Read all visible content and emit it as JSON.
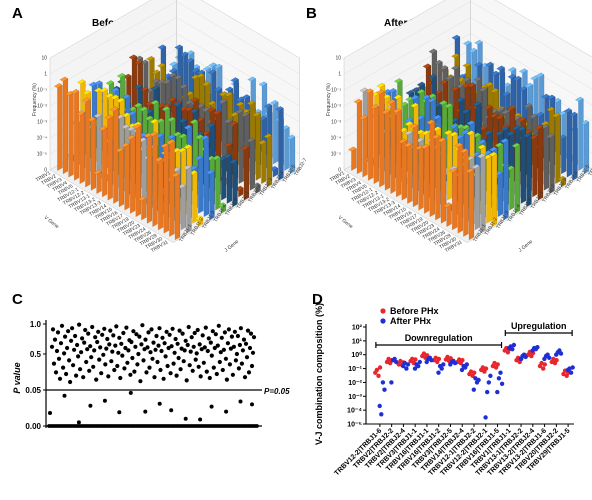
{
  "chart_data": [
    {
      "panel": "A",
      "type": "bar",
      "title": "Before PHx",
      "xlabel": "V Gene",
      "ylabel": "Frequency (%)",
      "zlabel": "J Gene",
      "z_ticks": [
        "10",
        "1",
        "10⁻¹",
        "10⁻²",
        "10⁻³",
        "10⁻⁴",
        "10⁻⁵",
        "0"
      ],
      "v_genes": [
        "TRBV1",
        "TRBV2",
        "TRBV3",
        "TRBV4",
        "TRBV5",
        "TRBV12-1",
        "TRBV12-2",
        "TRBV13-1",
        "TRBV13-2",
        "TRBV13-3",
        "TRBV14",
        "TRBV15",
        "TRBV16",
        "TRBV17",
        "TRBV19",
        "TRBV20",
        "TRBV23",
        "TRBV24",
        "TRBV26",
        "TRBV29",
        "TRBV30",
        "TRBV31"
      ],
      "j_genes": [
        "TRBJ1-1",
        "TRBJ1-2",
        "TRBJ1-3",
        "TRBJ1-4",
        "TRBJ1-5",
        "TRBJ2-1",
        "TRBJ2-2",
        "TRBJ2-3",
        "TRBJ2-4",
        "TRBJ2-5",
        "TRBJ2-7"
      ],
      "series_colors": [
        "#E87722",
        "#9E9E9E",
        "#F2B705",
        "#3A78C9",
        "#58A83A",
        "#1F4E79",
        "#8B3A0F",
        "#5F5F5F",
        "#9C7A00",
        "#2E63A8",
        "#5B9BD5"
      ]
    },
    {
      "panel": "B",
      "type": "bar",
      "title": "After PHx",
      "xlabel": "V Gene",
      "ylabel": "Frequency (%)",
      "zlabel": "J Gene",
      "z_ticks": [
        "10",
        "1",
        "10⁻¹",
        "10⁻²",
        "10⁻³",
        "10⁻⁴",
        "10⁻⁵",
        "0"
      ],
      "v_genes": [
        "TRBV1",
        "TRBV2",
        "TRBV3",
        "TRBV4",
        "TRBV5",
        "TRBV12-1",
        "TRBV12-2",
        "TRBV13-1",
        "TRBV13-2",
        "TRBV13-3",
        "TRBV14",
        "TRBV15",
        "TRBV16",
        "TRBV17",
        "TRBV19",
        "TRBV20",
        "TRBV23",
        "TRBV24",
        "TRBV26",
        "TRBV29",
        "TRBV30",
        "TRBV31"
      ],
      "j_genes": [
        "TRBJ1-1",
        "TRBJ1-2",
        "TRBJ1-3",
        "TRBJ1-4",
        "TRBJ1-5",
        "TRBJ2-1",
        "TRBJ2-2",
        "TRBJ2-3",
        "TRBJ2-4",
        "TRBJ2-5",
        "TRBJ2-7"
      ],
      "series_colors": [
        "#E87722",
        "#9E9E9E",
        "#F2B705",
        "#3A78C9",
        "#58A83A",
        "#1F4E79",
        "#8B3A0F",
        "#5F5F5F",
        "#9C7A00",
        "#2E63A8",
        "#5B9BD5"
      ]
    },
    {
      "panel": "C",
      "type": "scatter",
      "ylabel": "P value",
      "y_ticks": [
        "1.0",
        "0.5",
        "0.05",
        "0.00"
      ],
      "threshold": 0.05,
      "threshold_label": "P=0.05",
      "segment_breaks": [
        0.05,
        0.5
      ],
      "grid": false,
      "values": [
        0.62,
        0.91,
        0.38,
        0.74,
        0.27,
        0.55,
        0.86,
        0.44,
        0.19,
        0.68,
        0.97,
        0.33,
        0.51,
        0.79,
        0.25,
        0.6,
        0.88,
        0.42,
        0.15,
        0.72,
        0.93,
        0.36,
        0.57,
        0.8,
        0.23,
        0.65,
        0.47,
        0.99,
        0.31,
        0.53,
        0.76,
        0.21,
        0.69,
        0.9,
        0.4,
        0.58,
        0.84,
        0.29,
        0.63,
        0.46,
        0.95,
        0.34,
        0.56,
        0.78,
        0.18,
        0.7,
        0.87,
        0.43,
        0.61,
        0.26,
        0.82,
        0.49,
        0.92,
        0.37,
        0.59,
        0.75,
        0.22,
        0.66,
        0.89,
        0.41,
        0.54,
        0.81,
        0.3,
        0.64,
        0.96,
        0.35,
        0.52,
        0.77,
        0.2,
        0.67,
        0.48,
        0.85,
        0.32,
        0.6,
        0.94,
        0.39,
        0.56,
        0.73,
        0.24,
        0.7,
        0.45,
        0.88,
        0.28,
        0.62,
        0.83,
        0.37,
        0.5,
        0.79,
        0.16,
        0.66,
        0.98,
        0.42,
        0.58,
        0.74,
        0.27,
        0.61,
        0.86,
        0.33,
        0.53,
        0.91,
        0.44,
        0.69,
        0.21,
        0.57,
        0.8,
        0.4,
        0.64,
        0.93,
        0.3,
        0.55,
        0.77,
        0.19,
        0.68,
        0.47,
        0.87,
        0.35,
        0.6,
        0.82,
        0.26,
        0.63,
        0.92,
        0.38,
        0.52,
        0.75,
        0.23,
        0.67,
        0.45,
        0.89,
        0.31,
        0.59,
        0.84,
        0.41,
        0.56,
        0.72,
        0.17,
        0.65,
        0.95,
        0.36,
        0.54,
        0.78,
        0.29,
        0.62,
        0.85,
        0.43,
        0.51,
        0.9,
        0.34,
        0.66,
        0.22,
        0.58,
        0.81,
        0.39,
        0.61,
        0.94,
        0.28,
        0.55,
        0.76,
        0.2,
        0.69,
        0.48,
        0.88,
        0.33,
        0.6,
        0.83,
        0.25,
        0.64,
        0.97,
        0.4,
        0.53,
        0.77,
        0.3,
        0.57,
        0.86,
        0.44,
        0.18,
        0.68,
        0.91,
        0.37,
        0.59,
        0.79,
        0.24,
        0.62,
        0.87,
        0.42,
        0.5,
        0.8,
        0.32,
        0.65,
        0.93,
        0.38,
        0.56,
        0.74,
        0.21,
        0.67,
        0.46,
        0.89,
        0.27,
        0.6,
        0.84,
        0.35,
        0.52,
        0.78
      ],
      "low_values": [
        0.018,
        0.042,
        0.005,
        0.028,
        0.035,
        0.019,
        0.046,
        0.02,
        0.031,
        0.022,
        0.01,
        0.009,
        0.027,
        0.02,
        0.034,
        0.03
      ],
      "zero_count": 120
    },
    {
      "panel": "D",
      "type": "scatter",
      "ylabel": "V-J combination composition (%)",
      "y_ticks": [
        "10²",
        "10¹",
        "10⁰",
        "10⁻¹",
        "10⁻²",
        "10⁻³",
        "10⁻⁴",
        "10⁻⁵"
      ],
      "ylim_log10": [
        -5,
        2
      ],
      "legend_position": "top-left",
      "categories": [
        "TRBV12-2|TRBJ1-6",
        "TRBV2|TRBJ2-2",
        "TRBV2|TRBJ2-4",
        "TRBV3|TRBJ1-1",
        "TRBV16|TRBJ1-1",
        "TRBV16|TRBJ1-2",
        "TRBV3|TRBJ2-5",
        "TRBV14|TRBJ2-4",
        "TRBV12-1|TRBJ2-2",
        "TRBV12-2|TRBJ2-1",
        "TRBV16|TRBJ1-5",
        "TRBV1|TRBJ1-1",
        "TRBV13-1|TRBJ2-2",
        "TRBV13-2|TRBJ2-4",
        "TRBV13-2|TRBJ1-6",
        "TRBV20|TRBJ2-2",
        "TRBV29|TRBJ1-5"
      ],
      "groups": [
        {
          "label": "Downregulation",
          "from": 0,
          "to": 10
        },
        {
          "label": "Upregulation",
          "from": 11,
          "to": 16
        }
      ],
      "series": [
        {
          "name": "Before PHx",
          "color": "#E8262C",
          "values": [
            [
              0.05,
              0.08,
              0.03,
              0.12
            ],
            [
              0.3,
              0.5,
              0.25,
              0.4
            ],
            [
              0.2,
              0.35,
              0.18,
              0.28
            ],
            [
              0.35,
              0.5,
              0.25,
              0.45
            ],
            [
              0.8,
              1.2,
              0.6,
              0.9
            ],
            [
              0.4,
              0.6,
              0.3,
              0.5
            ],
            [
              0.45,
              0.7,
              0.35,
              0.55
            ],
            [
              0.3,
              0.45,
              0.25,
              0.4
            ],
            [
              0.04,
              0.06,
              0.03,
              0.05
            ],
            [
              0.08,
              0.12,
              0.06,
              0.1
            ],
            [
              0.15,
              0.25,
              0.12,
              0.2
            ],
            [
              2.0,
              3.0,
              1.5,
              2.5
            ],
            [
              0.4,
              0.6,
              0.3,
              0.5
            ],
            [
              1.0,
              1.6,
              0.8,
              1.3
            ],
            [
              0.15,
              0.25,
              0.1,
              0.2
            ],
            [
              0.3,
              0.5,
              0.25,
              0.4
            ],
            [
              0.04,
              0.07,
              0.03,
              0.05
            ]
          ]
        },
        {
          "name": "After PHx",
          "color": "#1F2FD6",
          "values": [
            [
              0.0002,
              5e-05,
              0.01,
              0.003
            ],
            [
              0.01,
              0.4,
              0.5,
              0.3
            ],
            [
              0.15,
              0.25,
              0.1,
              0.2
            ],
            [
              0.1,
              0.2,
              0.15,
              0.3
            ],
            [
              0.3,
              0.5,
              0.6,
              0.4
            ],
            [
              0.05,
              0.15,
              0.1,
              0.2
            ],
            [
              0.2,
              0.3,
              0.35,
              0.25
            ],
            [
              0.08,
              0.15,
              0.12,
              0.2
            ],
            [
              0.003,
              0.02,
              0.01,
              0.015
            ],
            [
              3e-05,
              0.002,
              0.01,
              0.03
            ],
            [
              0.002,
              0.02,
              0.05,
              0.008
            ],
            [
              3.0,
              4.0,
              2.5,
              5.0
            ],
            [
              0.5,
              0.8,
              1.0,
              0.7
            ],
            [
              2.0,
              3.0,
              2.5,
              3.5
            ],
            [
              0.5,
              0.8,
              1.0,
              0.6
            ],
            [
              1.0,
              1.5,
              2.0,
              1.2
            ],
            [
              0.08,
              0.1,
              0.05,
              0.12
            ]
          ]
        }
      ]
    }
  ],
  "panels": {
    "a": {
      "label": "A"
    },
    "b": {
      "label": "B"
    },
    "c": {
      "label": "C"
    },
    "d": {
      "label": "D"
    }
  }
}
